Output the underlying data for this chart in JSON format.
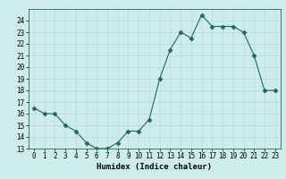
{
  "xlabel": "Humidex (Indice chaleur)",
  "x": [
    0,
    1,
    2,
    3,
    4,
    5,
    6,
    7,
    8,
    9,
    10,
    11,
    12,
    13,
    14,
    15,
    16,
    17,
    18,
    19,
    20,
    21,
    22,
    23
  ],
  "y": [
    16.5,
    16.0,
    16.0,
    15.0,
    14.5,
    13.5,
    13.0,
    13.0,
    13.5,
    14.5,
    14.5,
    15.5,
    19.0,
    21.5,
    23.0,
    22.5,
    24.5,
    23.5,
    23.5,
    23.5,
    23.0,
    21.0,
    18.0,
    18.0
  ],
  "ylim": [
    13,
    25
  ],
  "xlim": [
    -0.5,
    23.5
  ],
  "yticks": [
    13,
    14,
    15,
    16,
    17,
    18,
    19,
    20,
    21,
    22,
    23,
    24
  ],
  "xticks": [
    0,
    1,
    2,
    3,
    4,
    5,
    6,
    7,
    8,
    9,
    10,
    11,
    12,
    13,
    14,
    15,
    16,
    17,
    18,
    19,
    20,
    21,
    22,
    23
  ],
  "line_color": "#1a6b5a",
  "marker": "D",
  "markersize": 2.5,
  "bg_color": "#ceecea",
  "grid_color": "#b8dbd8",
  "axis_fontsize": 6.5,
  "tick_fontsize": 5.5
}
